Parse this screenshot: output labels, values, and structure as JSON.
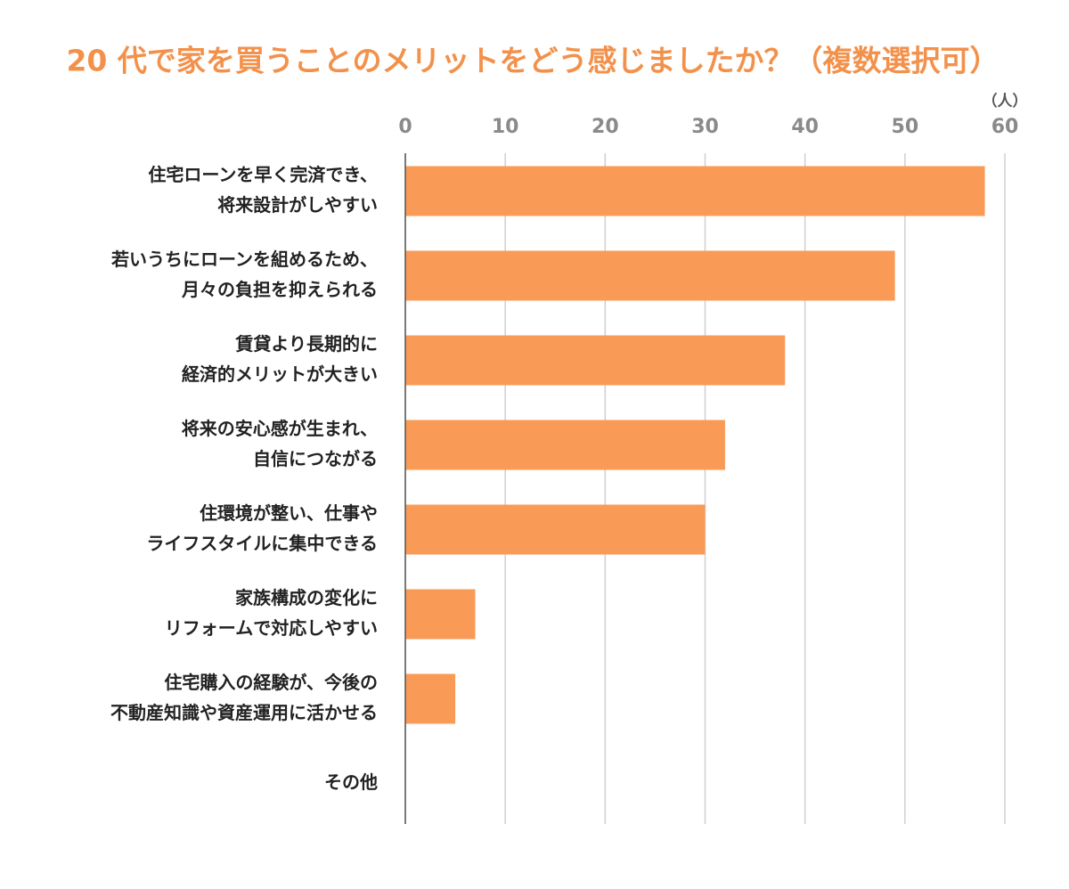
{
  "chart_data": {
    "type": "bar",
    "orientation": "horizontal",
    "title": "20 代で家を買うことのメリットをどう感じましたか？（複数選択可）",
    "unit_label": "（人）",
    "categories": [
      [
        "住宅ローンを早く完済でき、",
        "将来設計がしやすい"
      ],
      [
        "若いうちにローンを組めるため、",
        "月々の負担を抑えられる"
      ],
      [
        "賃貸より長期的に",
        "経済的メリットが大きい"
      ],
      [
        "将来の安心感が生まれ、",
        "自信につながる"
      ],
      [
        "住環境が整い、仕事や",
        "ライフスタイルに集中できる"
      ],
      [
        "家族構成の変化に",
        "リフォームで対応しやすい"
      ],
      [
        "住宅購入の経験が、今後の",
        "不動産知識や資産運用に活かせる"
      ],
      [
        "その他"
      ]
    ],
    "values": [
      58,
      49,
      38,
      32,
      30,
      7,
      5,
      0
    ],
    "color": "#f99b57",
    "xlim": [
      0,
      60
    ],
    "xticks": [
      0,
      10,
      20,
      30,
      40,
      50,
      60
    ],
    "grid": true
  }
}
